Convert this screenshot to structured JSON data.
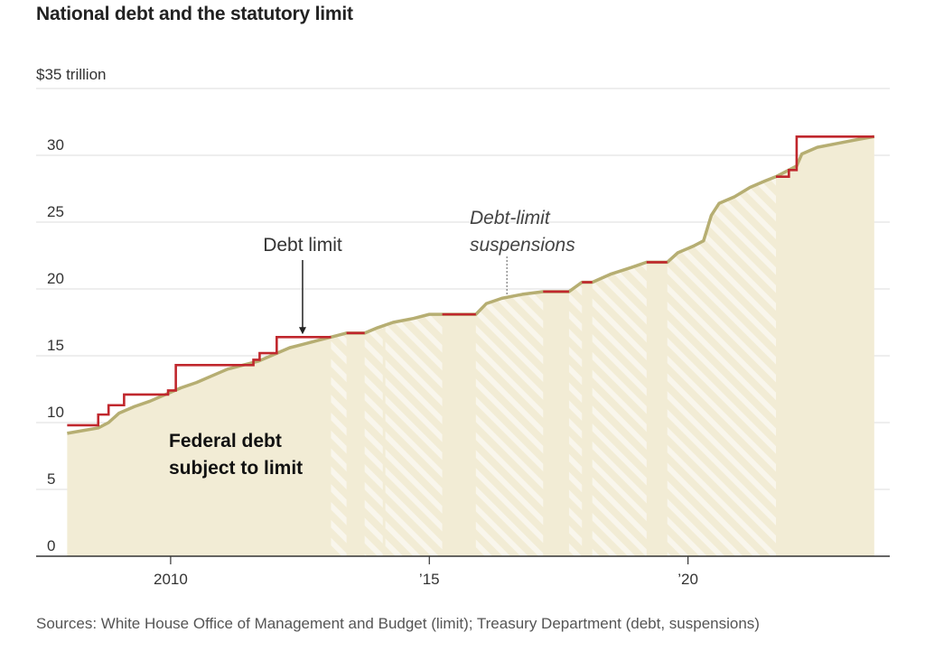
{
  "title": "National debt and the statutory limit",
  "source": "Sources: White House Office of Management and Budget (limit); Treasury Department (debt, suspensions)",
  "chart_data": {
    "type": "line",
    "y_unit_label": "$35 trillion",
    "y_ticks": [
      0,
      5,
      10,
      15,
      20,
      25,
      30
    ],
    "x_ticks": [
      {
        "value": 2010,
        "label": "2010"
      },
      {
        "value": 2015,
        "label": "’15"
      },
      {
        "value": 2020,
        "label": "’20"
      }
    ],
    "xlim": [
      2007.4,
      2023.9
    ],
    "ylim": [
      0,
      35
    ],
    "grid": true,
    "annotations": {
      "debt_limit": "Debt limit",
      "suspensions_line1": "Debt-limit",
      "suspensions_line2": "suspensions",
      "debt_line1": "Federal debt",
      "debt_line2": "subject to limit"
    },
    "colors": {
      "debt_limit": "#c0272d",
      "debt_line": "#b6ae72",
      "debt_fill": "#f2ecd5",
      "suspension_hatch": "#ffffff",
      "grid": "#dddddd",
      "axis": "#333333"
    },
    "suspensions": [
      [
        2013.1,
        2013.4
      ],
      [
        2013.75,
        2014.1
      ],
      [
        2014.15,
        2015.25
      ],
      [
        2015.9,
        2017.2
      ],
      [
        2017.7,
        2017.95
      ],
      [
        2018.15,
        2019.2
      ],
      [
        2019.6,
        2021.7
      ]
    ],
    "debt_limit": [
      {
        "x": 2008.0,
        "y": 9.8
      },
      {
        "x": 2008.6,
        "y": 9.8
      },
      {
        "x": 2008.6,
        "y": 10.6
      },
      {
        "x": 2008.8,
        "y": 10.6
      },
      {
        "x": 2008.8,
        "y": 11.3
      },
      {
        "x": 2009.1,
        "y": 11.3
      },
      {
        "x": 2009.1,
        "y": 12.1
      },
      {
        "x": 2009.95,
        "y": 12.1
      },
      {
        "x": 2009.95,
        "y": 12.4
      },
      {
        "x": 2010.1,
        "y": 12.4
      },
      {
        "x": 2010.1,
        "y": 14.3
      },
      {
        "x": 2011.6,
        "y": 14.3
      },
      {
        "x": 2011.6,
        "y": 14.7
      },
      {
        "x": 2011.72,
        "y": 14.7
      },
      {
        "x": 2011.72,
        "y": 15.2
      },
      {
        "x": 2012.05,
        "y": 15.2
      },
      {
        "x": 2012.05,
        "y": 16.4
      },
      {
        "x": 2013.1,
        "y": 16.4
      },
      {
        "x": 2013.4,
        "y": 16.7
      },
      {
        "x": 2013.75,
        "y": 16.7
      },
      {
        "x": 2015.25,
        "y": 18.1
      },
      {
        "x": 2015.9,
        "y": 18.1
      },
      {
        "x": 2017.2,
        "y": 19.8
      },
      {
        "x": 2017.7,
        "y": 19.8
      },
      {
        "x": 2017.95,
        "y": 20.5
      },
      {
        "x": 2018.15,
        "y": 20.5
      },
      {
        "x": 2019.2,
        "y": 22.0
      },
      {
        "x": 2019.6,
        "y": 22.0
      },
      {
        "x": 2021.7,
        "y": 28.4
      },
      {
        "x": 2021.95,
        "y": 28.4
      },
      {
        "x": 2021.95,
        "y": 28.9
      },
      {
        "x": 2022.1,
        "y": 28.9
      },
      {
        "x": 2022.1,
        "y": 31.4
      },
      {
        "x": 2023.6,
        "y": 31.4
      }
    ],
    "debt": [
      {
        "x": 2008.0,
        "y": 9.2
      },
      {
        "x": 2008.3,
        "y": 9.4
      },
      {
        "x": 2008.6,
        "y": 9.6
      },
      {
        "x": 2008.8,
        "y": 10.0
      },
      {
        "x": 2009.0,
        "y": 10.7
      },
      {
        "x": 2009.3,
        "y": 11.2
      },
      {
        "x": 2009.6,
        "y": 11.6
      },
      {
        "x": 2009.9,
        "y": 12.1
      },
      {
        "x": 2010.2,
        "y": 12.6
      },
      {
        "x": 2010.5,
        "y": 13.0
      },
      {
        "x": 2010.8,
        "y": 13.5
      },
      {
        "x": 2011.1,
        "y": 14.0
      },
      {
        "x": 2011.4,
        "y": 14.3
      },
      {
        "x": 2011.7,
        "y": 14.6
      },
      {
        "x": 2012.0,
        "y": 15.1
      },
      {
        "x": 2012.3,
        "y": 15.6
      },
      {
        "x": 2012.6,
        "y": 15.9
      },
      {
        "x": 2012.9,
        "y": 16.2
      },
      {
        "x": 2013.1,
        "y": 16.4
      },
      {
        "x": 2013.4,
        "y": 16.7
      },
      {
        "x": 2013.75,
        "y": 16.7
      },
      {
        "x": 2014.0,
        "y": 17.1
      },
      {
        "x": 2014.3,
        "y": 17.5
      },
      {
        "x": 2014.7,
        "y": 17.8
      },
      {
        "x": 2015.0,
        "y": 18.1
      },
      {
        "x": 2015.25,
        "y": 18.1
      },
      {
        "x": 2015.9,
        "y": 18.1
      },
      {
        "x": 2016.1,
        "y": 18.9
      },
      {
        "x": 2016.4,
        "y": 19.3
      },
      {
        "x": 2016.8,
        "y": 19.6
      },
      {
        "x": 2017.2,
        "y": 19.8
      },
      {
        "x": 2017.7,
        "y": 19.8
      },
      {
        "x": 2017.95,
        "y": 20.5
      },
      {
        "x": 2018.15,
        "y": 20.5
      },
      {
        "x": 2018.5,
        "y": 21.1
      },
      {
        "x": 2018.9,
        "y": 21.6
      },
      {
        "x": 2019.2,
        "y": 22.0
      },
      {
        "x": 2019.6,
        "y": 22.0
      },
      {
        "x": 2019.8,
        "y": 22.7
      },
      {
        "x": 2020.1,
        "y": 23.2
      },
      {
        "x": 2020.3,
        "y": 23.6
      },
      {
        "x": 2020.45,
        "y": 25.5
      },
      {
        "x": 2020.6,
        "y": 26.4
      },
      {
        "x": 2020.9,
        "y": 26.9
      },
      {
        "x": 2021.2,
        "y": 27.6
      },
      {
        "x": 2021.5,
        "y": 28.1
      },
      {
        "x": 2021.7,
        "y": 28.4
      },
      {
        "x": 2022.1,
        "y": 29.2
      },
      {
        "x": 2022.2,
        "y": 30.1
      },
      {
        "x": 2022.5,
        "y": 30.6
      },
      {
        "x": 2022.9,
        "y": 30.9
      },
      {
        "x": 2023.3,
        "y": 31.2
      },
      {
        "x": 2023.6,
        "y": 31.4
      }
    ]
  }
}
